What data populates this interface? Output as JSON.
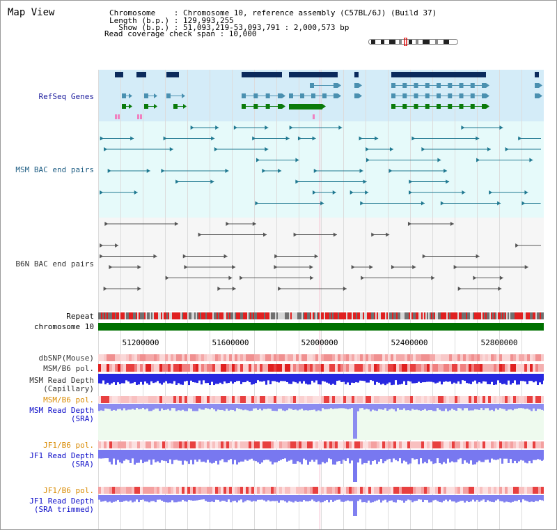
{
  "page": {
    "title": "Map View"
  },
  "header": {
    "line1": "Chromosome    : Chromosome 10, reference assembly (C57BL/6J) (Build 37)",
    "line2": "Length (b.p.) : 129,993,255",
    "line3": "  Show (b.p.) : 51,093,219-53,093,791 : 2,000,573 bp",
    "line4": "Read coverage check span : 10,000"
  },
  "tracks": {
    "refseq": "RefSeq Genes",
    "msm_bac": "MSM BAC end pairs",
    "b6n_bac": "B6N BAC end pairs",
    "repeat": "Repeat",
    "chromosome": "chromosome 10",
    "dbsnp": "dbSNP(Mouse)",
    "msm_pol": "MSM/B6 pol.",
    "msm_depth_cap_1": "MSM Read Depth",
    "msm_depth_cap_2": "(Capillary)",
    "msm_pol_sra": "MSM/B6 pol.",
    "msm_depth_sra_1": "MSM Read Depth",
    "msm_depth_sra_2": "(SRA)",
    "jf1_pol": "JF1/B6 pol.",
    "jf1_depth_sra_1": "JF1 Read Depth",
    "jf1_depth_sra_2": "(SRA)",
    "jf1_pol_2": "JF1/B6 pol.",
    "jf1_depth_trim_1": "JF1 Read Depth",
    "jf1_depth_trim_2": "(SRA trimmed)"
  },
  "axis": {
    "ticks": [
      "51200000",
      "51600000",
      "52000000",
      "52400000",
      "52800000"
    ]
  },
  "colors": {
    "refseq_bg": "#d4ecf8",
    "msm_bg": "#e6fafa",
    "b6n_bg": "#f4f4f4",
    "chromosome_bar": "#007000",
    "refseq_dark": "#0b2a5c",
    "refseq_mid": "#4a90b0",
    "refseq_green": "#0a7a0a",
    "depth_blue": "#2020e8",
    "depth_light": "#8080f0"
  }
}
